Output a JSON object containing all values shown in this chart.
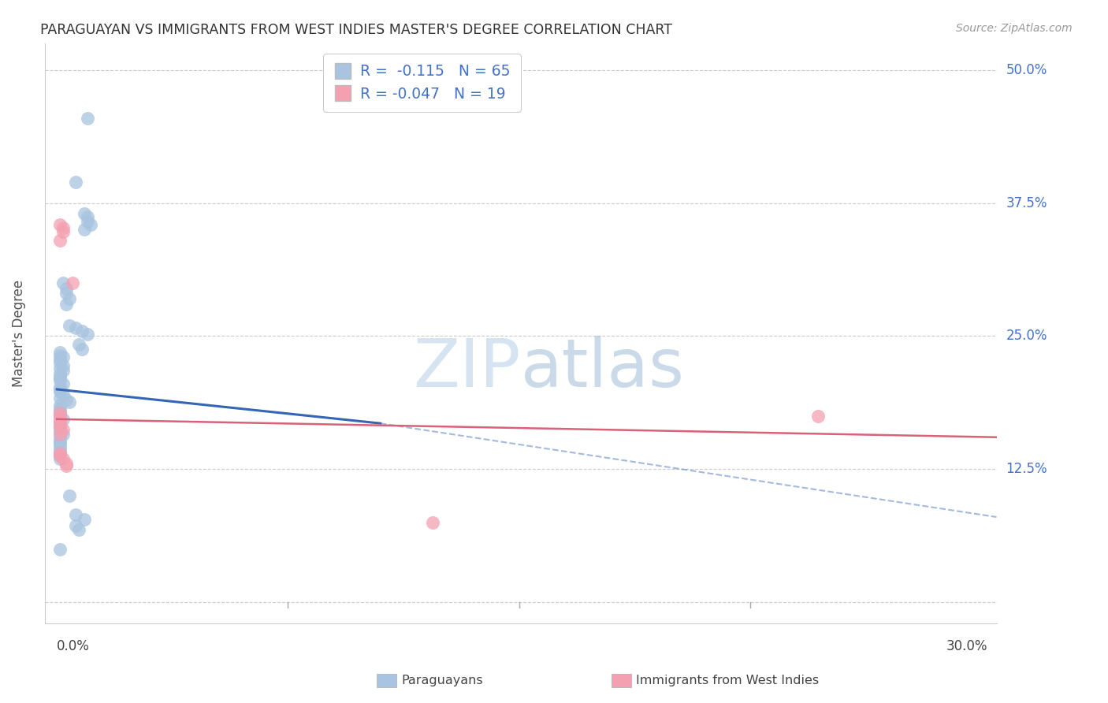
{
  "title": "PARAGUAYAN VS IMMIGRANTS FROM WEST INDIES MASTER'S DEGREE CORRELATION CHART",
  "source": "Source: ZipAtlas.com",
  "ylabel": "Master's Degree",
  "y_ticks": [
    0.0,
    0.125,
    0.25,
    0.375,
    0.5
  ],
  "y_tick_labels": [
    "",
    "12.5%",
    "25.0%",
    "37.5%",
    "50.0%"
  ],
  "xlim": [
    0.0,
    0.3
  ],
  "ylim": [
    0.0,
    0.52
  ],
  "blue_R": -0.115,
  "blue_N": 65,
  "pink_R": -0.047,
  "pink_N": 19,
  "blue_color": "#a8c4e0",
  "pink_color": "#f4a0b0",
  "blue_line_color": "#3565b5",
  "pink_line_color": "#d9627a",
  "blue_scatter_x": [
    0.01,
    0.006,
    0.009,
    0.01,
    0.01,
    0.011,
    0.009,
    0.002,
    0.003,
    0.003,
    0.004,
    0.003,
    0.004,
    0.006,
    0.008,
    0.01,
    0.007,
    0.008,
    0.001,
    0.001,
    0.002,
    0.001,
    0.001,
    0.002,
    0.001,
    0.002,
    0.001,
    0.001,
    0.001,
    0.001,
    0.002,
    0.001,
    0.001,
    0.001,
    0.002,
    0.001,
    0.003,
    0.004,
    0.001,
    0.001,
    0.001,
    0.001,
    0.001,
    0.002,
    0.001,
    0.001,
    0.001,
    0.001,
    0.001,
    0.002,
    0.001,
    0.001,
    0.001,
    0.001,
    0.001,
    0.001,
    0.001,
    0.001,
    0.001,
    0.004,
    0.006,
    0.009,
    0.006,
    0.007,
    0.001
  ],
  "blue_scatter_y": [
    0.455,
    0.395,
    0.365,
    0.362,
    0.358,
    0.355,
    0.35,
    0.3,
    0.295,
    0.29,
    0.285,
    0.28,
    0.26,
    0.258,
    0.255,
    0.252,
    0.242,
    0.238,
    0.235,
    0.232,
    0.23,
    0.228,
    0.225,
    0.222,
    0.22,
    0.218,
    0.215,
    0.212,
    0.21,
    0.208,
    0.205,
    0.202,
    0.2,
    0.198,
    0.195,
    0.192,
    0.19,
    0.188,
    0.185,
    0.182,
    0.18,
    0.178,
    0.175,
    0.172,
    0.17,
    0.168,
    0.165,
    0.162,
    0.16,
    0.158,
    0.155,
    0.152,
    0.15,
    0.148,
    0.145,
    0.142,
    0.14,
    0.138,
    0.135,
    0.1,
    0.082,
    0.078,
    0.072,
    0.068,
    0.05
  ],
  "pink_scatter_x": [
    0.001,
    0.002,
    0.002,
    0.001,
    0.005,
    0.001,
    0.001,
    0.001,
    0.001,
    0.001,
    0.002,
    0.001,
    0.001,
    0.001,
    0.002,
    0.003,
    0.003,
    0.247,
    0.122
  ],
  "pink_scatter_y": [
    0.355,
    0.352,
    0.348,
    0.34,
    0.3,
    0.178,
    0.175,
    0.172,
    0.168,
    0.165,
    0.162,
    0.158,
    0.14,
    0.138,
    0.135,
    0.13,
    0.128,
    0.175,
    0.075
  ],
  "watermark": "ZIPatlas",
  "legend_label_blue": "Paraguayans",
  "legend_label_pink": "Immigrants from West Indies"
}
